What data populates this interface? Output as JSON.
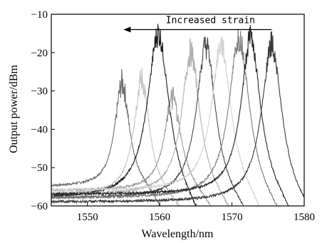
{
  "chart_data": {
    "type": "line",
    "title": "",
    "xlabel": "Wavelength/nm",
    "ylabel": "Output power/dBm",
    "xlim": [
      1545,
      1580
    ],
    "ylim": [
      -60,
      -10
    ],
    "xticks": [
      1550,
      1560,
      1570,
      1580
    ],
    "yticks": [
      -10,
      -20,
      -30,
      -40,
      -50,
      -60
    ],
    "xtick_labels": [
      "1550",
      "1560",
      "1570",
      "1580"
    ],
    "ytick_labels": [
      "−10",
      "−20",
      "−30",
      "−40",
      "−50",
      "−60"
    ],
    "grid": false,
    "legend": "none",
    "annotation": {
      "text": "Increased strain",
      "arrow_from_x": 1575.5,
      "arrow_to_x": 1555.0,
      "y": -14
    },
    "series": [
      {
        "peak": 1554.8,
        "peak_db": -28,
        "floor_db": -55,
        "width": 1.2,
        "color": "#6e6e6e"
      },
      {
        "peak": 1557.5,
        "peak_db": -27,
        "floor_db": -57,
        "width": 1.3,
        "color": "#c4c4c4"
      },
      {
        "peak": 1559.8,
        "peak_db": -15,
        "floor_db": -58,
        "width": 1.8,
        "color": "#1a1a1a"
      },
      {
        "peak": 1561.8,
        "peak_db": -32,
        "floor_db": -56,
        "width": 1.4,
        "color": "#9a9a9a"
      },
      {
        "peak": 1564.3,
        "peak_db": -20,
        "floor_db": -57,
        "width": 1.5,
        "color": "#b0b0b0"
      },
      {
        "peak": 1566.4,
        "peak_db": -18,
        "floor_db": -58,
        "width": 1.6,
        "color": "#4a4a4a"
      },
      {
        "peak": 1568.5,
        "peak_db": -18,
        "floor_db": -56,
        "width": 1.6,
        "color": "#d2d2d2"
      },
      {
        "peak": 1571.0,
        "peak_db": -16,
        "floor_db": -58,
        "width": 1.7,
        "color": "#7a7a7a"
      },
      {
        "peak": 1572.6,
        "peak_db": -16,
        "floor_db": -57,
        "width": 1.6,
        "color": "#262626"
      },
      {
        "peak": 1575.5,
        "peak_db": -18,
        "floor_db": -59,
        "width": 1.7,
        "color": "#3a3a3a"
      }
    ]
  }
}
